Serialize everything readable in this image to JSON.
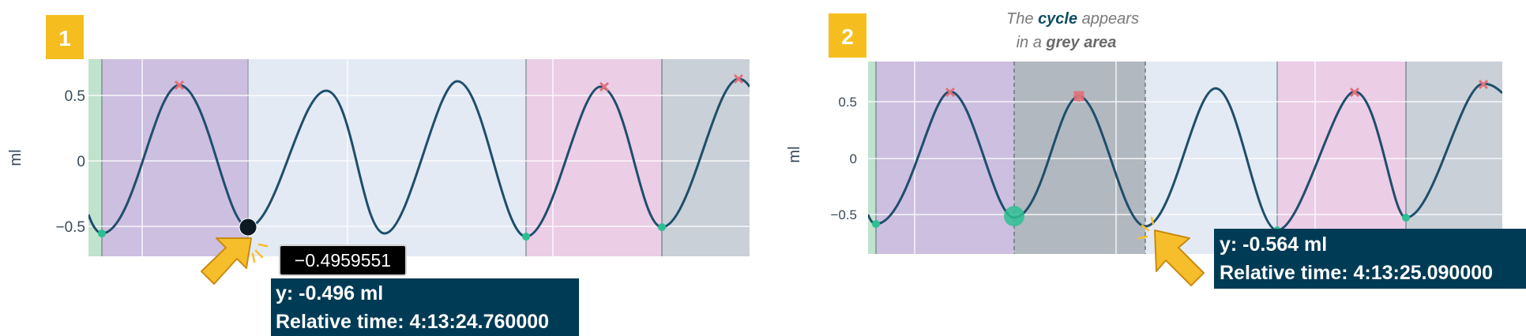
{
  "panels": [
    {
      "step_badge": "1",
      "y_axis_label": "ml",
      "y_ticks": [
        "0.5",
        "0",
        "−0.5"
      ],
      "value_tooltip": "−0.4959551",
      "hover_info": {
        "y_text": "y: -0.496 ml",
        "time_text": "Relative time: 4:13:24.760000"
      }
    },
    {
      "step_badge": "2",
      "y_axis_label": "ml",
      "y_ticks": [
        "0.5",
        "0",
        "−0.5"
      ],
      "caption": {
        "prefix": "The ",
        "cycle_word": "cycle",
        "appears": " appears",
        "line2_prefix": "in a ",
        "grey_area": "grey area"
      },
      "hover_info": {
        "y_text": "y: -0.564 ml",
        "time_text": "Relative time: 4:13:25.090000"
      }
    }
  ],
  "colors": {
    "badge": "#F5BE1E",
    "plot_bg": "#E4EAF4",
    "wave": "#1F4E6B",
    "tooltip_dark": "#003B55",
    "cycle_purple": "#CDBFE0",
    "cycle_pink": "#EBCDE6",
    "cycle_grey": "#C9D0D8",
    "selected_grey": "#A9AFB6",
    "green_band": "#BFE3CC",
    "peak_marker": "#E0707A",
    "trough_marker": "#2DBF93",
    "cursor": "#F6BE2A"
  },
  "chart_data": [
    {
      "type": "line",
      "ylabel": "ml",
      "y_ticks": [
        0.5,
        0,
        -0.5
      ],
      "ylim": [
        -0.75,
        0.72
      ],
      "grid": true,
      "series": [
        {
          "sampled_y": [
            -0.57,
            0.58,
            -0.496,
            0.54,
            -0.55,
            0.61,
            -0.58,
            0.58,
            -0.52,
            0.63
          ]
        }
      ],
      "peaks_marked": [
        0.58,
        0.58,
        0.63
      ],
      "troughs_marked": [
        -0.57,
        -0.58,
        -0.52
      ],
      "hovered_point": {
        "y": -0.496
      }
    },
    {
      "type": "line",
      "ylabel": "ml",
      "y_ticks": [
        0.5,
        0,
        -0.5
      ],
      "ylim": [
        -0.85,
        0.85
      ],
      "grid": true,
      "series": [
        {
          "sampled_y": [
            -0.58,
            0.58,
            -0.52,
            0.55,
            -0.564,
            0.62,
            -0.6,
            0.58,
            -0.54,
            0.64
          ]
        }
      ],
      "peaks_marked": [
        0.58,
        0.55,
        0.58,
        0.64
      ],
      "troughs_marked": [
        -0.58,
        -0.52,
        -0.54
      ],
      "hovered_point": {
        "y": -0.564
      }
    }
  ]
}
